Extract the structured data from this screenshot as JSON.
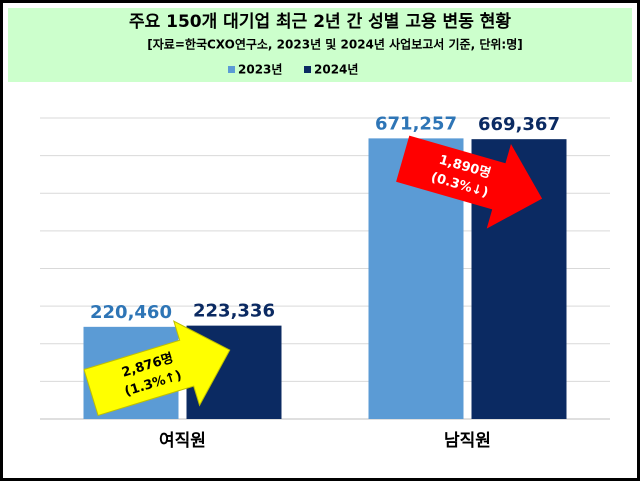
{
  "chart_data": {
    "type": "bar",
    "title": "주요 150개 대기업 최근 2년 간 성별 고용 변동 현황",
    "subtitle": "[자료=한국CXO연구소, 2023년 및 2024년 사업보고서 기준, 단위:명]",
    "categories": [
      "여직원",
      "남직원"
    ],
    "series": [
      {
        "name": "2023년",
        "color": "#5b9bd5",
        "label_color": "#2e75b6",
        "values": [
          220460,
          671257
        ],
        "value_labels": [
          "220,460",
          "671,257"
        ]
      },
      {
        "name": "2024년",
        "color": "#0b2a62",
        "label_color": "#0b2a62",
        "values": [
          223336,
          669367
        ],
        "value_labels": [
          "223,336",
          "669,367"
        ]
      }
    ],
    "ylim": [
      0,
      720000
    ],
    "yticks": [
      0,
      90000,
      180000,
      270000,
      360000,
      450000,
      540000,
      630000,
      720000
    ],
    "grid": true,
    "legend": "top",
    "annotations": [
      {
        "text": "2,876명",
        "subtext": "(1.3%↑)",
        "color": "#ffff00"
      },
      {
        "text": "1,890명",
        "subtext": "(0.3%↓)",
        "color": "#ff0000"
      }
    ]
  }
}
